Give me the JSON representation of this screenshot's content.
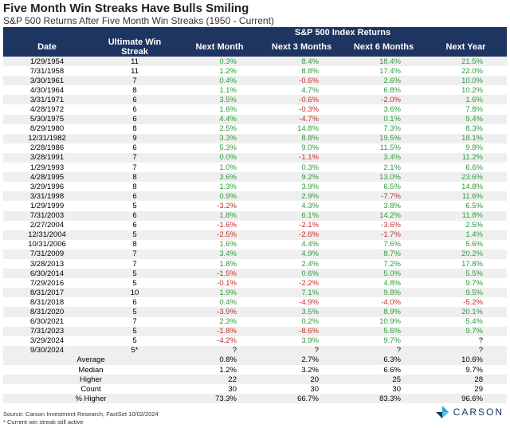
{
  "title": "Five Month Win Streaks Have Bulls Smiling",
  "subtitle": "S&P 500 Returns After Five Month Win Streaks (1950 - Current)",
  "table": {
    "group_header": "S&P 500 Index Returns",
    "columns": [
      "Date",
      "Ultimate Win Streak",
      "Next Month",
      "Next 3 Months",
      "Next 6 Months",
      "Next Year"
    ],
    "rows": [
      [
        "1/29/1954",
        "11",
        "0.3%",
        "8.4%",
        "18.4%",
        "21.5%"
      ],
      [
        "7/31/1958",
        "11",
        "1.2%",
        "8.8%",
        "17.4%",
        "22.0%"
      ],
      [
        "3/30/1961",
        "7",
        "0.4%",
        "-0.6%",
        "2.6%",
        "10.0%"
      ],
      [
        "4/30/1964",
        "8",
        "1.1%",
        "4.7%",
        "6.8%",
        "10.2%"
      ],
      [
        "3/31/1971",
        "6",
        "3.5%",
        "-0.6%",
        "-2.0%",
        "1.6%"
      ],
      [
        "4/28/1972",
        "6",
        "1.6%",
        "-0.3%",
        "3.6%",
        "7.8%"
      ],
      [
        "5/30/1975",
        "6",
        "4.4%",
        "-4.7%",
        "0.1%",
        "9.4%"
      ],
      [
        "8/29/1980",
        "8",
        "2.5%",
        "14.8%",
        "7.3%",
        "8.3%"
      ],
      [
        "12/31/1982",
        "9",
        "3.3%",
        "8.8%",
        "19.5%",
        "18.1%"
      ],
      [
        "2/28/1986",
        "6",
        "5.3%",
        "9.0%",
        "11.5%",
        "9.8%"
      ],
      [
        "3/28/1991",
        "7",
        "0.0%",
        "-1.1%",
        "3.4%",
        "11.2%"
      ],
      [
        "1/29/1993",
        "7",
        "1.0%",
        "0.3%",
        "2.1%",
        "6.6%"
      ],
      [
        "4/28/1995",
        "8",
        "3.6%",
        "9.2%",
        "13.0%",
        "23.6%"
      ],
      [
        "3/29/1996",
        "8",
        "1.3%",
        "3.9%",
        "6.5%",
        "14.8%"
      ],
      [
        "3/31/1998",
        "6",
        "0.9%",
        "2.9%",
        "-7.7%",
        "11.6%"
      ],
      [
        "1/29/1999",
        "5",
        "-3.2%",
        "4.3%",
        "3.8%",
        "6.5%"
      ],
      [
        "7/31/2003",
        "6",
        "1.8%",
        "6.1%",
        "14.2%",
        "11.8%"
      ],
      [
        "2/27/2004",
        "6",
        "-1.6%",
        "-2.1%",
        "-3.6%",
        "2.5%"
      ],
      [
        "12/31/2004",
        "5",
        "-2.5%",
        "-2.6%",
        "-1.7%",
        "1.4%"
      ],
      [
        "10/31/2006",
        "8",
        "1.6%",
        "4.4%",
        "7.6%",
        "5.6%"
      ],
      [
        "7/31/2009",
        "7",
        "3.4%",
        "4.9%",
        "8.7%",
        "20.2%"
      ],
      [
        "3/28/2013",
        "7",
        "1.8%",
        "2.4%",
        "7.2%",
        "17.8%"
      ],
      [
        "6/30/2014",
        "5",
        "-1.5%",
        "0.6%",
        "5.0%",
        "5.5%"
      ],
      [
        "7/29/2016",
        "5",
        "-0.1%",
        "-2.2%",
        "4.8%",
        "9.7%"
      ],
      [
        "8/31/2017",
        "10",
        "1.9%",
        "7.1%",
        "9.8%",
        "9.5%"
      ],
      [
        "8/31/2018",
        "6",
        "0.4%",
        "-4.9%",
        "-4.0%",
        "-5.2%"
      ],
      [
        "8/31/2020",
        "5",
        "-3.9%",
        "3.5%",
        "8.9%",
        "20.1%"
      ],
      [
        "6/30/2021",
        "7",
        "2.3%",
        "0.2%",
        "10.9%",
        "5.4%"
      ],
      [
        "7/31/2023",
        "5",
        "-1.8%",
        "-8.6%",
        "5.6%",
        "9.7%"
      ],
      [
        "3/29/2024",
        "5",
        "-4.2%",
        "3.9%",
        "9.7%",
        "?"
      ],
      [
        "9/30/2024",
        "5*",
        "?",
        "?",
        "?",
        "?"
      ]
    ],
    "summary": [
      [
        "Average",
        "0.8%",
        "2.7%",
        "6.3%",
        "10.6%"
      ],
      [
        "Median",
        "1.2%",
        "3.2%",
        "6.6%",
        "9.7%"
      ],
      [
        "Higher",
        "22",
        "20",
        "25",
        "28"
      ],
      [
        "Count",
        "30",
        "30",
        "30",
        "29"
      ],
      [
        "% Higher",
        "73.3%",
        "66.7%",
        "83.3%",
        "96.6%"
      ]
    ]
  },
  "footer": {
    "source": "Source: Carson Investment Research, FactSet 10/02/2024",
    "note": "* Current win streak still active"
  },
  "logo": "CARSON"
}
